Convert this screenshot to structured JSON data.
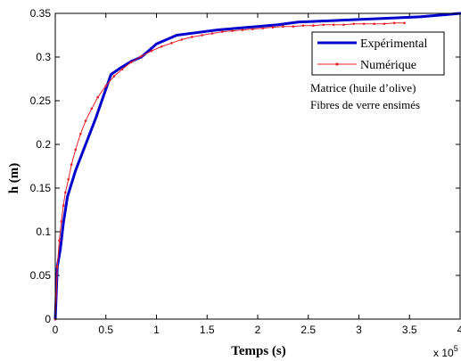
{
  "chart_data": {
    "type": "line",
    "xlabel": "Temps (s)",
    "ylabel": "h (m)",
    "x_multiplier": "x 10",
    "x_multiplier_exp": "5",
    "xlim": [
      0,
      4
    ],
    "ylim": [
      0,
      0.35
    ],
    "x_ticks": [
      0,
      0.5,
      1,
      1.5,
      2,
      2.5,
      3,
      3.5,
      4
    ],
    "y_ticks": [
      0,
      0.05,
      0.1,
      0.15,
      0.2,
      0.25,
      0.3,
      0.35
    ],
    "x_tick_labels": [
      "0",
      "0.5",
      "1",
      "1.5",
      "2",
      "2.5",
      "3",
      "3.5",
      "4"
    ],
    "y_tick_labels": [
      "0",
      "0.05",
      "0.1",
      "0.15",
      "0.2",
      "0.25",
      "0.3",
      "0.35"
    ],
    "legend_position": "top-right",
    "annotations": [
      "Matrice (huile d’olive)",
      "Fibres de verre ensimés"
    ],
    "series": [
      {
        "name": "Expérimental",
        "color": "#0000cc",
        "style": "thick-solid",
        "x": [
          0,
          0.02,
          0.05,
          0.08,
          0.12,
          0.2,
          0.3,
          0.4,
          0.55,
          0.65,
          0.75,
          0.85,
          0.95,
          1.0,
          1.1,
          1.2,
          1.4,
          1.6,
          1.8,
          2.0,
          2.2,
          2.4,
          2.8,
          3.2,
          3.6,
          3.8,
          4.0
        ],
        "y": [
          0,
          0.06,
          0.08,
          0.11,
          0.14,
          0.17,
          0.2,
          0.23,
          0.28,
          0.288,
          0.295,
          0.3,
          0.31,
          0.315,
          0.32,
          0.325,
          0.328,
          0.331,
          0.333,
          0.335,
          0.337,
          0.34,
          0.342,
          0.344,
          0.346,
          0.348,
          0.35
        ]
      },
      {
        "name": "Numérique",
        "color": "#e8202a",
        "style": "thin-with-dots",
        "x": [
          0,
          0.02,
          0.04,
          0.06,
          0.08,
          0.1,
          0.13,
          0.16,
          0.2,
          0.25,
          0.3,
          0.36,
          0.42,
          0.5,
          0.58,
          0.66,
          0.75,
          0.85,
          0.95,
          1.05,
          1.15,
          1.25,
          1.35,
          1.45,
          1.55,
          1.65,
          1.75,
          1.85,
          1.95,
          2.05,
          2.15,
          2.25,
          2.35,
          2.45,
          2.55,
          2.65,
          2.75,
          2.85,
          2.95,
          3.05,
          3.15,
          3.25,
          3.35,
          3.45
        ],
        "y": [
          0,
          0.06,
          0.09,
          0.112,
          0.13,
          0.145,
          0.16,
          0.177,
          0.194,
          0.212,
          0.227,
          0.241,
          0.254,
          0.267,
          0.278,
          0.286,
          0.294,
          0.301,
          0.307,
          0.312,
          0.316,
          0.32,
          0.323,
          0.325,
          0.327,
          0.329,
          0.33,
          0.331,
          0.332,
          0.333,
          0.334,
          0.335,
          0.335,
          0.336,
          0.336,
          0.337,
          0.337,
          0.337,
          0.338,
          0.338,
          0.338,
          0.338,
          0.339,
          0.339
        ]
      }
    ]
  }
}
